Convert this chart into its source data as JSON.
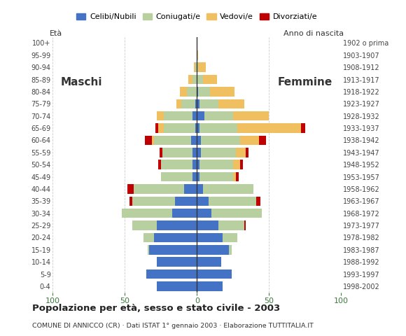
{
  "age_groups": [
    "0-4",
    "5-9",
    "10-14",
    "15-19",
    "20-24",
    "25-29",
    "30-34",
    "35-39",
    "40-44",
    "45-49",
    "50-54",
    "55-59",
    "60-64",
    "65-69",
    "70-74",
    "75-79",
    "80-84",
    "85-89",
    "90-94",
    "95-99",
    "100+"
  ],
  "birth_years": [
    "1998-2002",
    "1993-1997",
    "1988-1992",
    "1983-1987",
    "1978-1982",
    "1973-1977",
    "1968-1972",
    "1963-1967",
    "1958-1962",
    "1953-1957",
    "1948-1952",
    "1943-1947",
    "1938-1942",
    "1933-1937",
    "1928-1932",
    "1923-1927",
    "1918-1922",
    "1913-1917",
    "1908-1912",
    "1903-1907",
    "1902 o prima"
  ],
  "males": {
    "celibi": [
      28,
      35,
      28,
      33,
      30,
      28,
      17,
      15,
      9,
      3,
      3,
      3,
      4,
      1,
      3,
      1,
      0,
      0,
      0,
      0,
      0
    ],
    "coniugati": [
      0,
      0,
      0,
      1,
      7,
      17,
      35,
      30,
      35,
      22,
      22,
      21,
      26,
      22,
      20,
      10,
      7,
      3,
      1,
      0,
      0
    ],
    "vedovi": [
      0,
      0,
      0,
      0,
      0,
      0,
      0,
      0,
      0,
      0,
      0,
      0,
      1,
      4,
      5,
      3,
      5,
      3,
      1,
      0,
      0
    ],
    "divorziati": [
      0,
      0,
      0,
      0,
      0,
      0,
      0,
      2,
      4,
      0,
      2,
      2,
      5,
      2,
      0,
      0,
      0,
      0,
      0,
      0,
      0
    ]
  },
  "females": {
    "nubili": [
      18,
      24,
      17,
      22,
      18,
      15,
      10,
      8,
      4,
      2,
      2,
      3,
      3,
      2,
      5,
      2,
      1,
      0,
      0,
      0,
      0
    ],
    "coniugate": [
      0,
      0,
      0,
      2,
      10,
      18,
      35,
      33,
      35,
      23,
      23,
      24,
      27,
      26,
      20,
      13,
      8,
      4,
      1,
      0,
      0
    ],
    "vedove": [
      0,
      0,
      0,
      0,
      0,
      0,
      0,
      0,
      0,
      2,
      5,
      7,
      13,
      44,
      25,
      18,
      17,
      10,
      5,
      1,
      0
    ],
    "divorziate": [
      0,
      0,
      0,
      0,
      0,
      1,
      0,
      3,
      0,
      2,
      2,
      2,
      5,
      3,
      0,
      0,
      0,
      0,
      0,
      0,
      0
    ]
  },
  "colors": {
    "celibi": "#4472c4",
    "coniugati": "#b8cfa0",
    "vedovi": "#f0c060",
    "divorziati": "#c00000"
  },
  "xlim": 100,
  "title": "Popolazione per età, sesso e stato civile - 2003",
  "subtitle": "COMUNE DI ANNICCO (CR) · Dati ISTAT 1° gennaio 2003 · Elaborazione TUTTITALIA.IT",
  "legend_labels": [
    "Celibi/Nubili",
    "Coniugati/e",
    "Vedovi/e",
    "Divorziati/e"
  ],
  "label_maschi": "Maschi",
  "label_femmine": "Femmine",
  "label_eta": "Età",
  "label_anno": "Anno di nascita"
}
